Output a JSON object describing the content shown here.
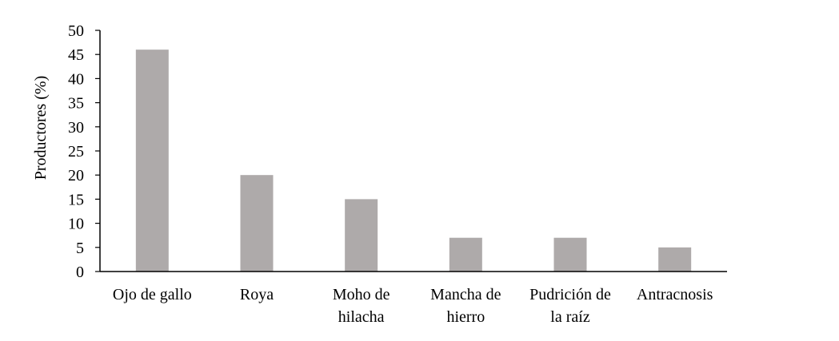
{
  "chart_data": {
    "type": "bar",
    "title": "",
    "xlabel": "",
    "ylabel": "Productores (%)",
    "ylim": [
      0,
      50
    ],
    "yticks": [
      "0",
      "5",
      "10",
      "15",
      "20",
      "25",
      "30",
      "35",
      "40",
      "45",
      "50"
    ],
    "grid": false,
    "bar_color": "#aeaaaa",
    "categories": [
      [
        "Ojo de gallo"
      ],
      [
        "Roya"
      ],
      [
        "Moho de",
        "hilacha"
      ],
      [
        "Mancha de",
        "hierro"
      ],
      [
        "Pudrición de",
        "la raíz"
      ],
      [
        "Antracnosis"
      ]
    ],
    "values": [
      46,
      20,
      15,
      7,
      7,
      5
    ]
  }
}
